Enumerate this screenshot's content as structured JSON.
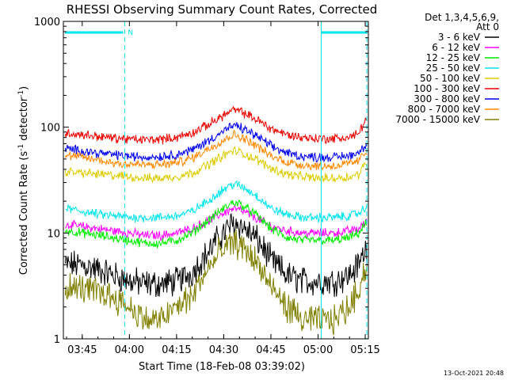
{
  "chart_data": {
    "type": "line",
    "title": "RHESSI Observing Summary Count Rates, Corrected",
    "xlabel": "Start Time (18-Feb-08 03:39:02)",
    "ylabel": "Corrected Count Rate (s⁻¹ detector⁻¹)",
    "ylabel_parts": {
      "a": "Corrected Count Rate (s",
      "b": "-1",
      "c": " detector",
      "d": "-1",
      "e": ")"
    },
    "yscale": "log",
    "ylim": [
      1,
      1000
    ],
    "xlim": [
      39.0,
      136.0
    ],
    "x_unit": "minutes after 03:00",
    "x_ticks": [
      {
        "value": 45,
        "label": "03:45"
      },
      {
        "value": 60,
        "label": "04:00"
      },
      {
        "value": 75,
        "label": "04:15"
      },
      {
        "value": 90,
        "label": "04:30"
      },
      {
        "value": 105,
        "label": "04:45"
      },
      {
        "value": 120,
        "label": "05:00"
      },
      {
        "value": 135,
        "label": "05:15"
      }
    ],
    "y_ticks": [
      {
        "value": 1,
        "label": "1"
      },
      {
        "value": 10,
        "label": "10"
      },
      {
        "value": 100,
        "label": "100"
      },
      {
        "value": 1000,
        "label": "1000"
      }
    ],
    "legend_header": [
      "Det 1,3,4,5,6,9,",
      "Att 0"
    ],
    "legend_position": "right",
    "night_boundaries": [
      {
        "x": 58.5,
        "style": "dashed"
      },
      {
        "x": 121.0,
        "style": "solid"
      },
      {
        "x": 135.5,
        "style": "dashed"
      }
    ],
    "flag_bars": [
      {
        "x_start": 39.5,
        "x_end": 58.0,
        "label": "N"
      },
      {
        "x_start": 121.0,
        "x_end": 135.5,
        "label": ""
      }
    ],
    "flag_color": "#00e5ee",
    "x_samples": [
      40,
      45,
      50,
      55,
      60,
      65,
      70,
      75,
      80,
      85,
      90,
      93,
      95,
      100,
      105,
      110,
      115,
      120,
      125,
      130,
      133,
      135
    ],
    "series": [
      {
        "name": "3 - 6 keV",
        "color": "#000000",
        "values": [
          5,
          5,
          4.5,
          4,
          3.5,
          3.3,
          3.3,
          3.5,
          4.2,
          6.5,
          10,
          12.5,
          12,
          9,
          5.5,
          4,
          3.5,
          3.5,
          3.5,
          4,
          5,
          7
        ]
      },
      {
        "name": "6 - 12 keV",
        "color": "#ff00ff",
        "values": [
          12,
          11.5,
          11,
          10.5,
          10,
          9.5,
          9.5,
          10,
          11,
          13,
          15.5,
          17,
          16.5,
          14,
          11.5,
          10.5,
          10,
          10,
          10,
          10.5,
          11,
          12.5
        ]
      },
      {
        "name": "12 - 25 keV",
        "color": "#00ee00",
        "values": [
          10.5,
          10,
          9.5,
          9,
          8.5,
          8,
          8,
          8.5,
          10,
          13,
          17,
          19.5,
          19,
          15,
          11,
          9,
          8.5,
          8.5,
          8.5,
          9,
          10,
          12
        ]
      },
      {
        "name": "25 - 50 keV",
        "color": "#00e5ee",
        "values": [
          17,
          16,
          15,
          14.5,
          14,
          14,
          14,
          14.5,
          16,
          20,
          26,
          29,
          28,
          23,
          17,
          15,
          14,
          14,
          14,
          14.5,
          15.5,
          17
        ]
      },
      {
        "name": "50 - 100 keV",
        "color": "#ddcc00",
        "values": [
          38,
          37,
          36,
          35,
          34,
          33,
          33,
          34,
          37,
          44,
          54,
          60,
          58,
          50,
          41,
          36,
          34,
          33,
          33,
          34,
          36,
          45
        ]
      },
      {
        "name": "100 - 300 keV",
        "color": "#ee0000",
        "values": [
          88,
          85,
          82,
          79,
          77,
          76,
          77,
          80,
          88,
          105,
          130,
          145,
          142,
          120,
          97,
          85,
          80,
          78,
          78,
          80,
          88,
          115
        ]
      },
      {
        "name": "300 - 800 keV",
        "color": "#0000ee",
        "values": [
          62,
          60,
          57,
          55,
          53,
          52,
          53,
          55,
          61,
          74,
          92,
          103,
          100,
          84,
          66,
          57,
          53,
          52,
          52,
          54,
          58,
          68
        ]
      },
      {
        "name": "800 - 7000 keV",
        "color": "#ff8800",
        "values": [
          54,
          52,
          49,
          46,
          45,
          44,
          44,
          46,
          51,
          62,
          76,
          85,
          82,
          68,
          53,
          47,
          44,
          43,
          43,
          45,
          48,
          58
        ]
      },
      {
        "name": "7000 - 15000 keV",
        "color": "#808000",
        "values": [
          3,
          3,
          2.8,
          2.5,
          2,
          1.5,
          1.5,
          2,
          2.5,
          4.5,
          7,
          8,
          7.8,
          5.5,
          3,
          2,
          1.5,
          1.5,
          1.5,
          2,
          3,
          4.5
        ]
      }
    ]
  },
  "footer_timestamp": "13-Oct-2021 20:48"
}
